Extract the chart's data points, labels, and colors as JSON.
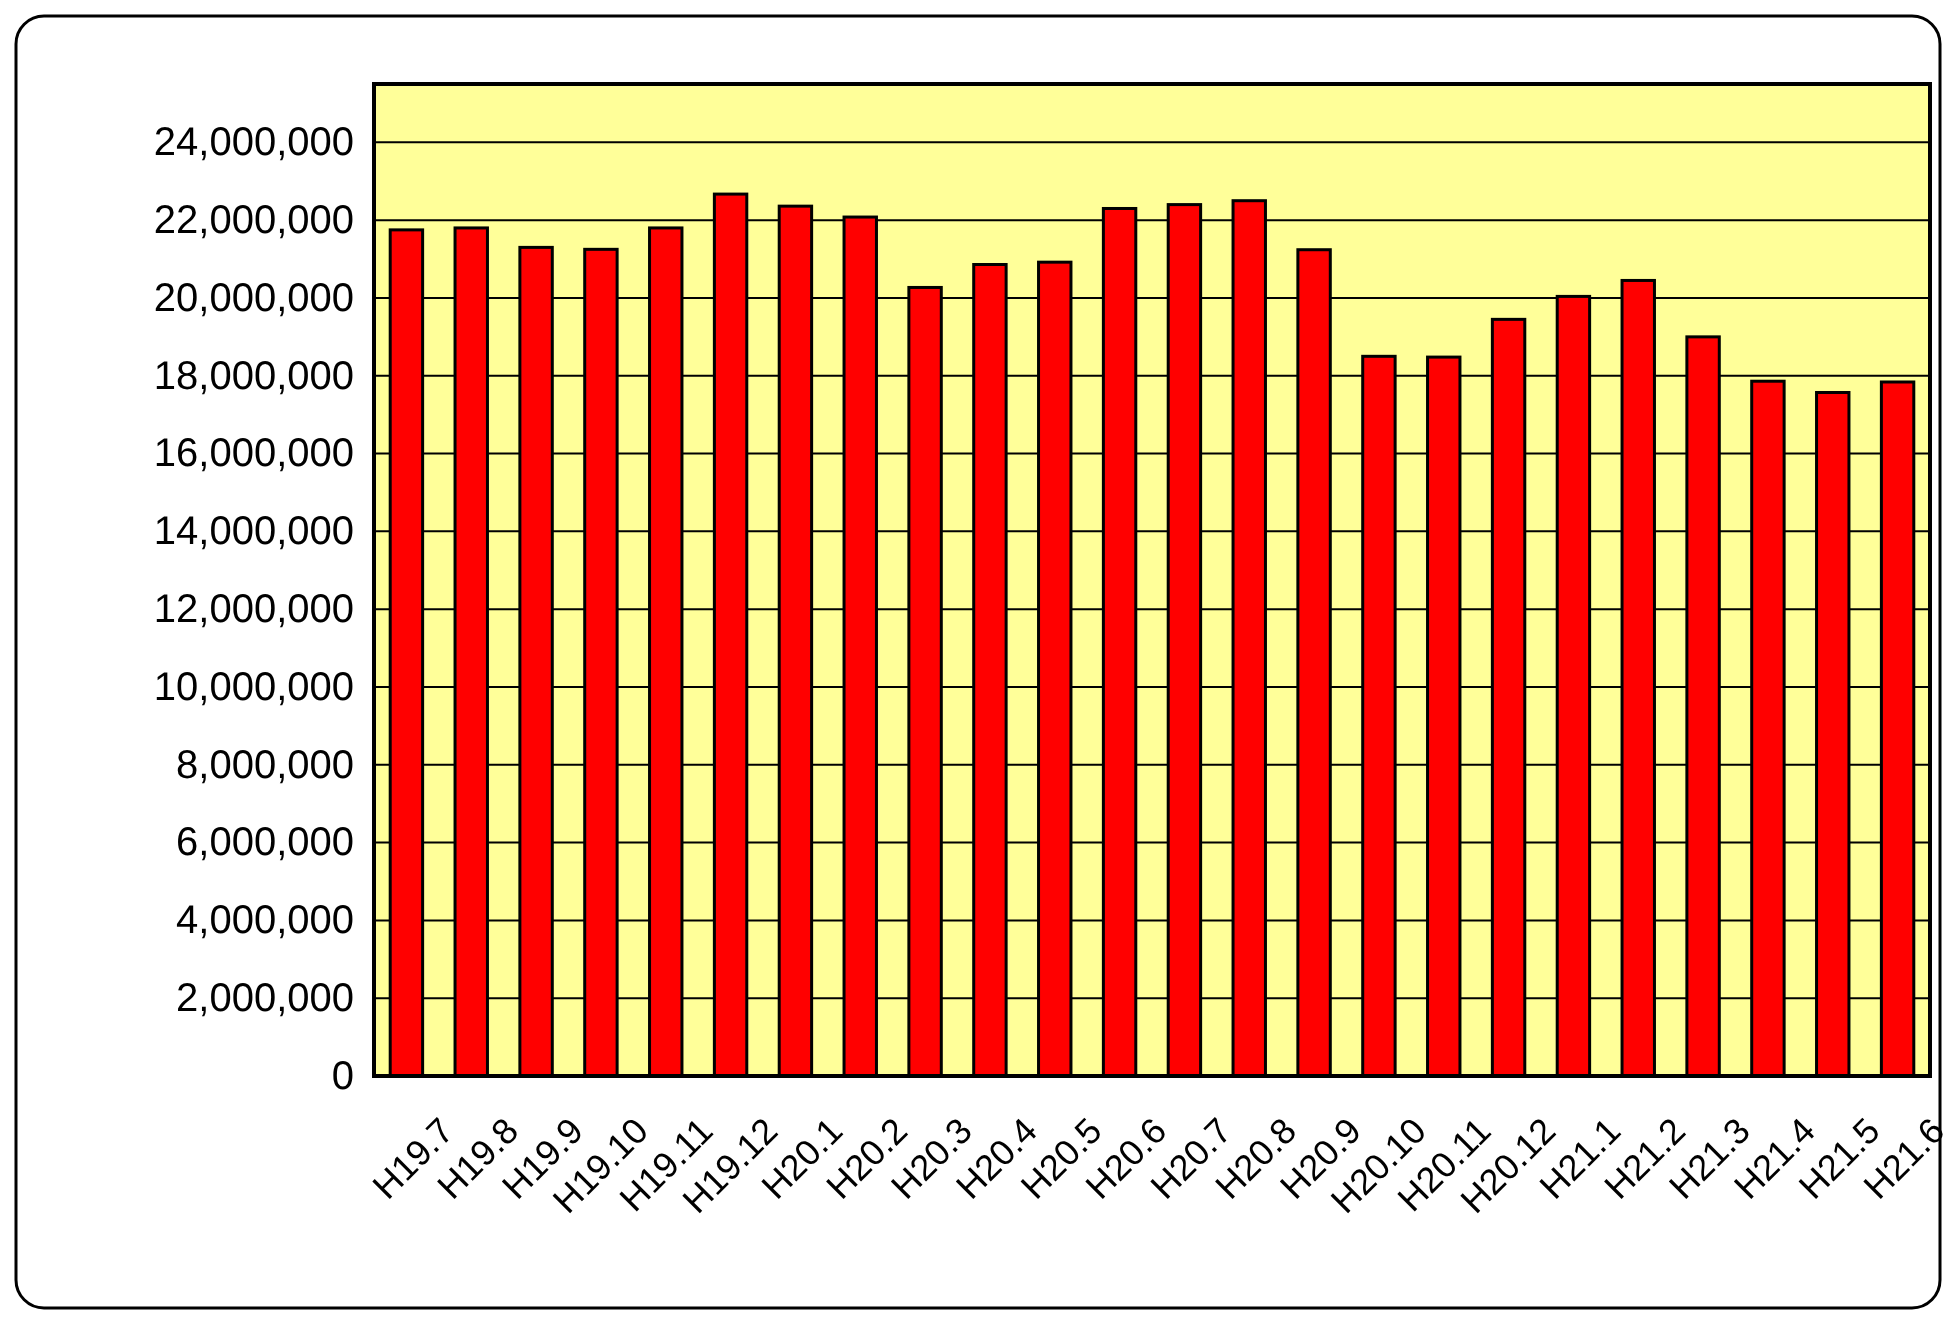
{
  "chart_data": {
    "type": "bar",
    "categories": [
      "H19.7",
      "H19.8",
      "H19.9",
      "H19.10",
      "H19.11",
      "H19.12",
      "H20.1",
      "H20.2",
      "H20.3",
      "H20.4",
      "H20.5",
      "H20.6",
      "H20.7",
      "H20.8",
      "H20.9",
      "H20.10",
      "H20.11",
      "H20.12",
      "H21.1",
      "H21.2",
      "H21.3",
      "H21.4",
      "H21.5",
      "H21.6"
    ],
    "values": [
      21750000,
      21800000,
      21300000,
      21250000,
      21800000,
      22670000,
      22360000,
      22080000,
      20270000,
      20860000,
      20920000,
      22300000,
      22400000,
      22500000,
      21240000,
      18500000,
      18480000,
      19450000,
      20040000,
      20450000,
      19000000,
      17860000,
      17570000,
      17840000
    ],
    "color": "#ff0000",
    "ylim": [
      0,
      25500000
    ],
    "yticks": [
      {
        "value": 0,
        "label": "0"
      },
      {
        "value": 2000000,
        "label": "2,000,000"
      },
      {
        "value": 4000000,
        "label": "4,000,000"
      },
      {
        "value": 6000000,
        "label": "6,000,000"
      },
      {
        "value": 8000000,
        "label": "8,000,000"
      },
      {
        "value": 10000000,
        "label": "10,000,000"
      },
      {
        "value": 12000000,
        "label": "12,000,000"
      },
      {
        "value": 14000000,
        "label": "14,000,000"
      },
      {
        "value": 16000000,
        "label": "16,000,000"
      },
      {
        "value": 18000000,
        "label": "18,000,000"
      },
      {
        "value": 20000000,
        "label": "20,000,000"
      },
      {
        "value": 22000000,
        "label": "22,000,000"
      },
      {
        "value": 24000000,
        "label": "24,000,000"
      }
    ],
    "grid": "y"
  }
}
